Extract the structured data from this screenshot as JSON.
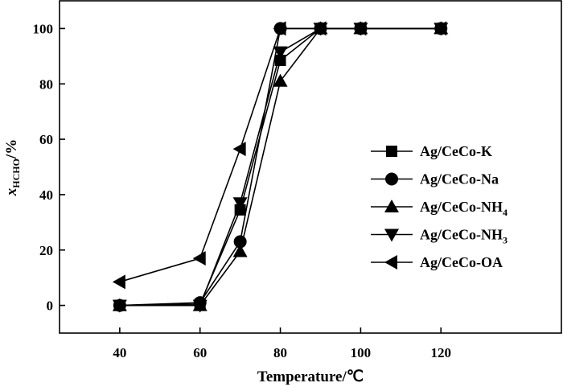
{
  "chart_data": {
    "type": "line",
    "title": "",
    "xlabel": "Temperature/℃",
    "ylabel": {
      "main": "x",
      "subscript": "HCHO",
      "unit": "/%"
    },
    "xlim": [
      25,
      150
    ],
    "ylim": [
      -10,
      110
    ],
    "xticks": [
      40,
      60,
      80,
      100,
      120
    ],
    "yticks": [
      0,
      20,
      40,
      60,
      80,
      100
    ],
    "grid": false,
    "legend_position": "right",
    "series": [
      {
        "name": "Ag/CeCo-K",
        "legend": {
          "main": "Ag/CeCo-K",
          "sub": ""
        },
        "marker": "square",
        "x": [
          40,
          60,
          70,
          80,
          90,
          100,
          120
        ],
        "y": [
          0,
          0.5,
          34.5,
          88.5,
          100,
          100,
          100
        ]
      },
      {
        "name": "Ag/CeCo-Na",
        "legend": {
          "main": "Ag/CeCo-Na",
          "sub": ""
        },
        "marker": "circle",
        "x": [
          40,
          60,
          70,
          80,
          90,
          100,
          120
        ],
        "y": [
          0,
          1,
          23,
          100,
          100,
          100,
          100
        ]
      },
      {
        "name": "Ag/CeCo-NH4",
        "legend": {
          "main": "Ag/CeCo-NH",
          "sub": "4"
        },
        "marker": "triangle-up",
        "x": [
          40,
          60,
          70,
          80,
          90,
          100,
          120
        ],
        "y": [
          0,
          0,
          19.5,
          81,
          100,
          100,
          100
        ]
      },
      {
        "name": "Ag/CeCo-NH3",
        "legend": {
          "main": "Ag/CeCo-NH",
          "sub": "3"
        },
        "marker": "triangle-down",
        "x": [
          40,
          60,
          70,
          80,
          90,
          100,
          120
        ],
        "y": [
          0,
          0,
          37,
          91.5,
          100,
          100,
          100
        ]
      },
      {
        "name": "Ag/CeCo-OA",
        "legend": {
          "main": "Ag/CeCo-OA",
          "sub": ""
        },
        "marker": "triangle-left",
        "x": [
          40,
          60,
          70,
          80,
          90,
          100,
          120
        ],
        "y": [
          8.5,
          17,
          56.5,
          100,
          100,
          100,
          100
        ]
      }
    ]
  }
}
